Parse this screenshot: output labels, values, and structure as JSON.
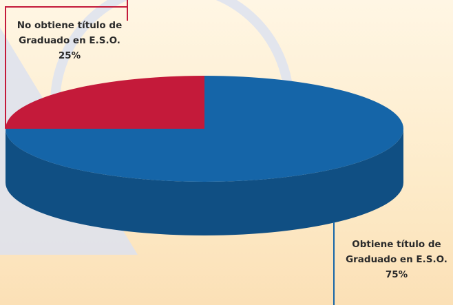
{
  "chart_data": {
    "type": "pie",
    "categories": [
      "Obtiene título de Graduado en E.S.O.",
      "No obtiene título de Graduado en E.S.O."
    ],
    "values": [
      75,
      25
    ],
    "value_labels": [
      "75%",
      "25%"
    ],
    "colors": [
      "#1565a8",
      "#c41a3a"
    ]
  }
}
